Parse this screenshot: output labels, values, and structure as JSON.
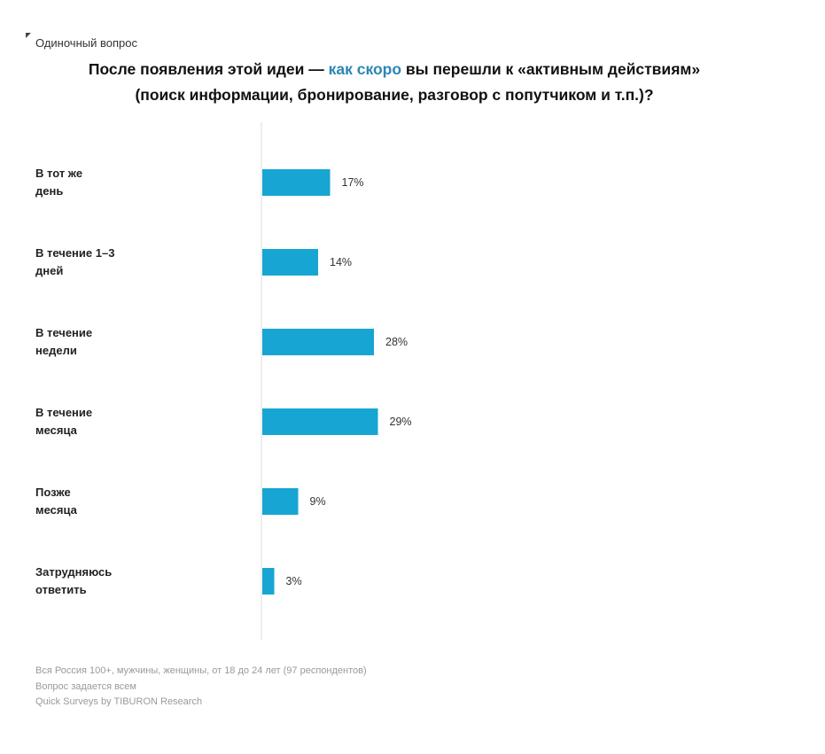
{
  "header": {
    "question_type": "Одиночный вопрос",
    "title_part1": "После появления этой идеи — ",
    "title_accent": "как скоро",
    "title_part2": " вы перешли к «активным действиям»",
    "title_line2": "(поиск информации, бронирование, разговор с попутчиком и т.п.)?"
  },
  "colors": {
    "bar": "#17a5d3",
    "accent": "#2c86b4",
    "axis": "#dddddd"
  },
  "chart_data": {
    "type": "bar",
    "orientation": "horizontal",
    "title": "После появления этой идеи — как скоро вы перешли к «активным действиям» (поиск информации, бронирование, разговор с попутчиком и т.п.)?",
    "categories": [
      [
        "В тот же",
        "день"
      ],
      [
        "В течение 1–3",
        "дней"
      ],
      [
        "В течение",
        "недели"
      ],
      [
        "В течение",
        "месяца"
      ],
      [
        "Позже",
        "месяца"
      ],
      [
        "Затрудняюсь",
        "ответить"
      ]
    ],
    "values": [
      17,
      14,
      28,
      29,
      9,
      3
    ],
    "value_labels": [
      "17%",
      "14%",
      "28%",
      "29%",
      "9%",
      "3%"
    ],
    "unit": "%",
    "xlim": [
      0,
      100
    ],
    "grid": false,
    "legend": "none"
  },
  "footer": {
    "line1": "Вся Россия 100+, мужчины, женщины, от 18 до 24 лет (97 респондентов)",
    "line2": "Вопрос задается всем",
    "line3": "Quick Surveys by TIBURON Research"
  }
}
